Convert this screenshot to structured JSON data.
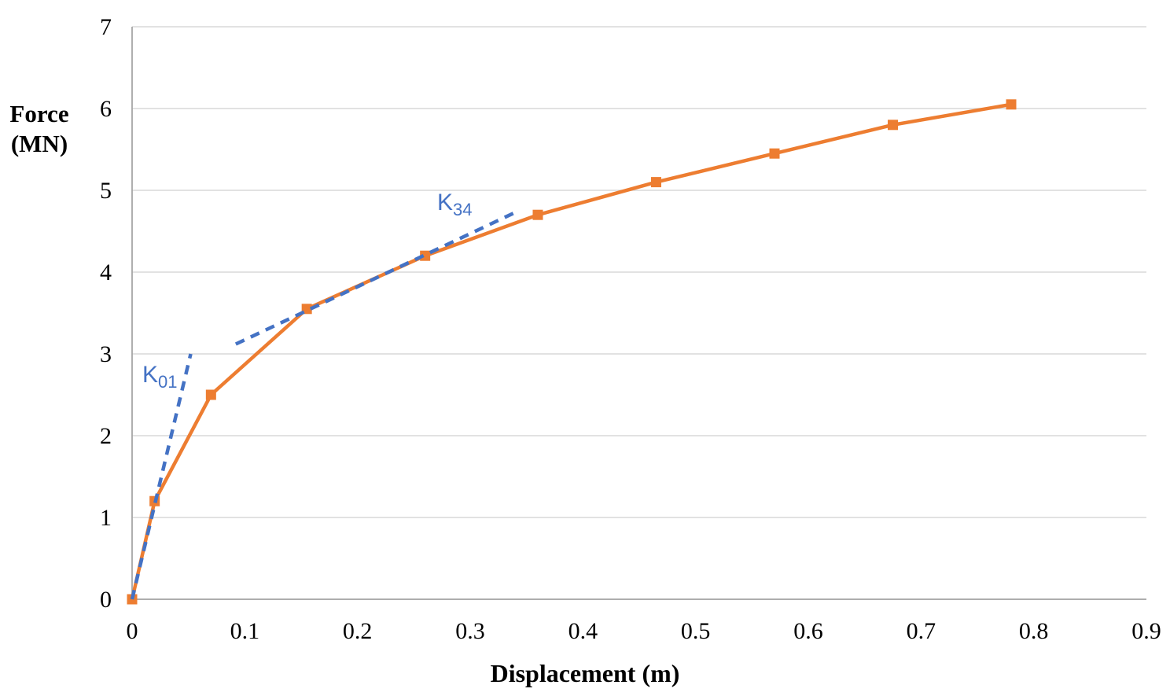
{
  "chart_data": {
    "type": "line",
    "title": "",
    "xlabel": "Displacement (m)",
    "ylabel": "Force (MN)",
    "ylabel_line1": "Force",
    "ylabel_line2": "(MN)",
    "xlim": [
      0,
      0.9
    ],
    "ylim": [
      0,
      7
    ],
    "x_ticks": [
      0,
      0.1,
      0.2,
      0.3,
      0.4,
      0.5,
      0.6,
      0.7,
      0.8,
      0.9
    ],
    "x_tick_labels": [
      "0",
      "0.1",
      "0.2",
      "0.3",
      "0.4",
      "0.5",
      "0.6",
      "0.7",
      "0.8",
      "0.9"
    ],
    "y_ticks": [
      0,
      1,
      2,
      3,
      4,
      5,
      6,
      7
    ],
    "y_tick_labels": [
      "0",
      "1",
      "2",
      "3",
      "4",
      "5",
      "6",
      "7"
    ],
    "grid": "horizontal",
    "legend": "none",
    "series": [
      {
        "name": "force-displacement-curve",
        "color": "#ED7D31",
        "marker": "square",
        "line_style": "solid",
        "x": [
          0,
          0.02,
          0.07,
          0.155,
          0.26,
          0.36,
          0.465,
          0.57,
          0.675,
          0.78
        ],
        "y": [
          0,
          1.2,
          2.5,
          3.55,
          4.2,
          4.7,
          5.1,
          5.45,
          5.8,
          6.05
        ]
      },
      {
        "name": "k01-secant-line",
        "color": "#4472C4",
        "marker": "none",
        "line_style": "dashed",
        "x": [
          0,
          0.052
        ],
        "y": [
          0,
          3.0
        ]
      },
      {
        "name": "k34-secant-line",
        "color": "#4472C4",
        "marker": "none",
        "line_style": "dashed",
        "x": [
          0.092,
          0.34
        ],
        "y": [
          3.12,
          4.73
        ]
      }
    ],
    "annotations": [
      {
        "text": "K",
        "sub": "01",
        "color": "#4472C4",
        "x": 0.026,
        "y": 2.65
      },
      {
        "text": "K",
        "sub": "34",
        "color": "#4472C4",
        "x": 0.289,
        "y": 4.78
      }
    ],
    "colors": {
      "background": "#FFFFFF",
      "gridline": "#D9D9D9",
      "axis_line": "#A6A6A6",
      "tick_text": "#000000"
    }
  }
}
